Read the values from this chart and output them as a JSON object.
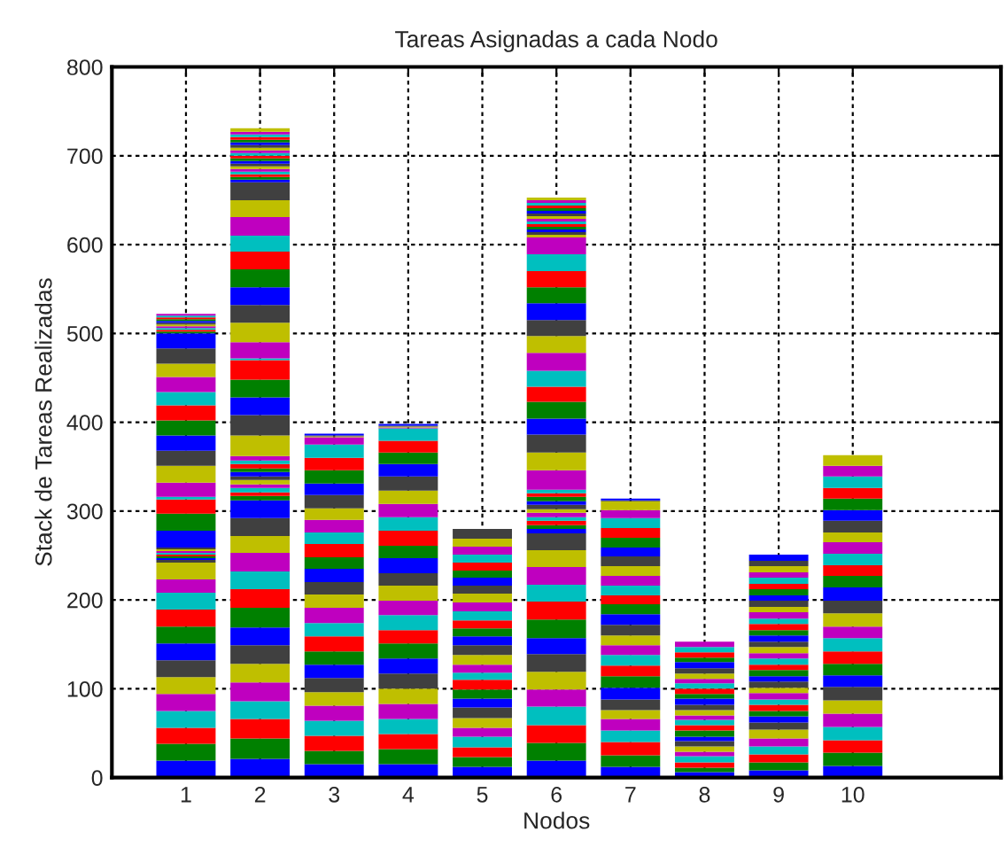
{
  "chart_data": {
    "type": "bar",
    "title": "Tareas Asignadas a cada Nodo",
    "xlabel": "Nodos",
    "ylabel": "Stack de Tareas Realizadas",
    "x": [
      1,
      2,
      3,
      4,
      5,
      6,
      7,
      8,
      9,
      10
    ],
    "xlim": [
      0,
      12
    ],
    "xticks": [
      1,
      2,
      3,
      4,
      5,
      6,
      7,
      8,
      9,
      10
    ],
    "ylim": [
      0,
      800
    ],
    "yticks": [
      0,
      100,
      200,
      300,
      400,
      500,
      600,
      700,
      800
    ],
    "grid": true,
    "stacked": true,
    "series": [
      {
        "color": "#0000ff",
        "values": [
          19,
          21,
          15,
          15,
          12,
          19,
          12,
          6,
          8,
          13
        ]
      },
      {
        "color": "#008000",
        "values": [
          19,
          23,
          15,
          17,
          11,
          20,
          13,
          5,
          9,
          15
        ]
      },
      {
        "color": "#ff0000",
        "values": [
          18,
          22,
          17,
          17,
          11,
          20,
          15,
          6,
          9,
          14
        ]
      },
      {
        "color": "#00bfbf",
        "values": [
          19,
          20,
          17,
          17,
          12,
          21,
          13,
          7,
          9,
          15
        ]
      },
      {
        "color": "#bf00bf",
        "values": [
          19,
          21,
          17,
          17,
          10,
          19,
          13,
          5,
          9,
          15
        ]
      },
      {
        "color": "#bfbf00",
        "values": [
          19,
          21,
          15,
          17,
          11,
          20,
          10,
          6,
          10,
          15
        ]
      },
      {
        "color": "#404040",
        "values": [
          19,
          21,
          16,
          17,
          12,
          20,
          12,
          6,
          8,
          15
        ]
      },
      {
        "color": "#0000ff",
        "values": [
          19,
          20,
          15,
          17,
          10,
          18,
          13,
          5,
          7,
          13
        ]
      },
      {
        "color": "#008000",
        "values": [
          19,
          22,
          15,
          17,
          10,
          21,
          13,
          7,
          6,
          13
        ]
      },
      {
        "color": "#ff0000",
        "values": [
          19,
          21,
          17,
          15,
          11,
          20,
          12,
          6,
          7,
          14
        ]
      },
      {
        "color": "#00bfbf",
        "values": [
          19,
          20,
          15,
          17,
          8,
          19,
          12,
          6,
          6,
          15
        ]
      },
      {
        "color": "#bf00bf",
        "values": [
          15,
          21,
          17,
          16,
          9,
          20,
          11,
          5,
          7,
          13
        ]
      },
      {
        "color": "#bfbf00",
        "values": [
          19,
          19,
          15,
          17,
          11,
          19,
          11,
          6,
          6,
          15
        ]
      },
      {
        "color": "#404040",
        "values": [
          3,
          20,
          14,
          14,
          11,
          19,
          12,
          6,
          7,
          14
        ]
      },
      {
        "color": "#0000ff",
        "values": [
          2,
          20,
          15,
          17,
          10,
          5,
          12,
          7,
          6,
          15
        ]
      },
      {
        "color": "#008000",
        "values": [
          2,
          5,
          13,
          14,
          9,
          4,
          11,
          5,
          7,
          13
        ]
      },
      {
        "color": "#ff0000",
        "values": [
          2,
          4,
          15,
          17,
          9,
          5,
          10,
          6,
          6,
          12
        ]
      },
      {
        "color": "#00bfbf",
        "values": [
          2,
          5,
          13,
          15,
          10,
          4,
          11,
          6,
          7,
          13
        ]
      },
      {
        "color": "#bf00bf",
        "values": [
          2,
          4,
          14,
          15,
          10,
          5,
          11,
          5,
          6,
          13
        ]
      },
      {
        "color": "#bfbf00",
        "values": [
          2,
          5,
          13,
          15,
          10,
          4,
          11,
          6,
          7,
          11
        ]
      },
      {
        "color": "#404040",
        "values": [
          2,
          4,
          15,
          16,
          9,
          5,
          11,
          6,
          6,
          13
        ]
      },
      {
        "color": "#0000ff",
        "values": [
          19,
          5,
          13,
          14,
          9,
          4,
          10,
          7,
          7,
          12
        ]
      },
      {
        "color": "#008000",
        "values": [
          19,
          4,
          15,
          13,
          8,
          5,
          11,
          5,
          6,
          13
        ]
      },
      {
        "color": "#ff0000",
        "values": [
          16,
          5,
          14,
          13,
          9,
          4,
          11,
          6,
          7,
          12
        ]
      },
      {
        "color": "#00bfbf",
        "values": [
          3,
          4,
          15,
          14,
          9,
          4,
          11,
          6,
          6,
          13
        ]
      },
      {
        "color": "#bf00bf",
        "values": [
          16,
          5,
          8,
          1,
          9,
          22,
          9,
          6,
          7,
          12
        ]
      },
      {
        "color": "#bfbf00",
        "values": [
          19,
          23,
          1,
          1,
          9,
          20,
          10,
          null,
          6,
          12
        ]
      },
      {
        "color": "#404040",
        "values": [
          17,
          23,
          1,
          1,
          11,
          20,
          1,
          null,
          7,
          null
        ]
      },
      {
        "color": "#0000ff",
        "values": [
          17,
          20,
          2,
          2,
          null,
          18,
          2,
          null,
          6,
          null
        ]
      },
      {
        "color": "#008000",
        "values": [
          17,
          20,
          null,
          null,
          null,
          19,
          null,
          null,
          7,
          null
        ]
      },
      {
        "color": "#ff0000",
        "values": [
          17,
          22,
          null,
          null,
          null,
          17,
          null,
          null,
          6,
          null
        ]
      },
      {
        "color": "#00bfbf",
        "values": [
          15,
          2,
          null,
          null,
          null,
          18,
          null,
          null,
          7,
          null
        ]
      },
      {
        "color": "#bf00bf",
        "values": [
          17,
          18,
          null,
          null,
          null,
          20,
          null,
          null,
          6,
          null
        ]
      },
      {
        "color": "#bfbf00",
        "values": [
          15,
          22,
          null,
          null,
          null,
          19,
          null,
          null,
          7,
          null
        ]
      },
      {
        "color": "#404040",
        "values": [
          17,
          20,
          null,
          null,
          null,
          18,
          null,
          null,
          6,
          null
        ]
      },
      {
        "color": "#0000ff",
        "values": [
          17,
          20,
          null,
          null,
          null,
          19,
          null,
          null,
          7,
          null
        ]
      },
      {
        "color": "#008000",
        "values": [
          2,
          20,
          null,
          null,
          null,
          18,
          null,
          null,
          null,
          null
        ]
      },
      {
        "color": "#ff0000",
        "values": [
          2,
          20,
          null,
          null,
          null,
          18,
          null,
          null,
          null,
          null
        ]
      },
      {
        "color": "#00bfbf",
        "values": [
          2,
          18,
          null,
          null,
          null,
          19,
          null,
          null,
          null,
          null
        ]
      },
      {
        "color": "#bf00bf",
        "values": [
          2,
          21,
          null,
          null,
          null,
          19,
          null,
          null,
          null,
          null
        ]
      },
      {
        "color": "#bfbf00",
        "values": [
          2,
          19,
          null,
          null,
          null,
          3,
          null,
          null,
          null,
          null
        ]
      },
      {
        "color": "#404040",
        "values": [
          2,
          20,
          null,
          null,
          null,
          3,
          null,
          null,
          null,
          null
        ]
      },
      {
        "color": "#0000ff",
        "values": [
          2,
          3,
          null,
          null,
          null,
          3,
          null,
          null,
          null,
          null
        ]
      },
      {
        "color": "#008000",
        "values": [
          2,
          3,
          null,
          null,
          null,
          3,
          null,
          null,
          null,
          null
        ]
      },
      {
        "color": "#ff0000",
        "values": [
          2,
          3,
          null,
          null,
          null,
          3,
          null,
          null,
          null,
          null
        ]
      },
      {
        "color": "#00bfbf",
        "values": [
          2,
          3,
          null,
          null,
          null,
          3,
          null,
          null,
          null,
          null
        ]
      },
      {
        "color": "#bf00bf",
        "values": [
          2,
          3,
          null,
          null,
          null,
          3,
          null,
          null,
          null,
          null
        ]
      },
      {
        "color": "#bfbf00",
        "values": [
          null,
          3,
          null,
          null,
          null,
          3,
          null,
          null,
          null,
          null
        ]
      },
      {
        "color": "#404040",
        "values": [
          null,
          3,
          null,
          null,
          null,
          3,
          null,
          null,
          null,
          null
        ]
      },
      {
        "color": "#0000ff",
        "values": [
          null,
          3,
          null,
          null,
          null,
          3,
          null,
          null,
          null,
          null
        ]
      },
      {
        "color": "#008000",
        "values": [
          null,
          3,
          null,
          null,
          null,
          3,
          null,
          null,
          null,
          null
        ]
      },
      {
        "color": "#ff0000",
        "values": [
          null,
          3,
          null,
          null,
          null,
          3,
          null,
          null,
          null,
          null
        ]
      },
      {
        "color": "#00bfbf",
        "values": [
          null,
          3,
          null,
          null,
          null,
          3,
          null,
          null,
          null,
          null
        ]
      },
      {
        "color": "#bf00bf",
        "values": [
          null,
          3,
          null,
          null,
          null,
          3,
          null,
          null,
          null,
          null
        ]
      },
      {
        "color": "#bfbf00",
        "values": [
          null,
          3,
          null,
          null,
          null,
          3,
          null,
          null,
          null,
          null
        ]
      },
      {
        "color": "#404040",
        "values": [
          null,
          3,
          null,
          null,
          null,
          null,
          null,
          null,
          null,
          null
        ]
      },
      {
        "color": "#0000ff",
        "values": [
          null,
          3,
          null,
          null,
          null,
          null,
          null,
          null,
          null,
          null
        ]
      },
      {
        "color": "#008000",
        "values": [
          null,
          3,
          null,
          null,
          null,
          null,
          null,
          null,
          null,
          null
        ]
      },
      {
        "color": "#ff0000",
        "values": [
          null,
          3,
          null,
          null,
          null,
          null,
          null,
          null,
          null,
          null
        ]
      },
      {
        "color": "#00bfbf",
        "values": [
          null,
          3,
          null,
          null,
          null,
          null,
          null,
          null,
          null,
          null
        ]
      },
      {
        "color": "#bf00bf",
        "values": [
          null,
          3,
          null,
          null,
          null,
          null,
          null,
          null,
          null,
          null
        ]
      },
      {
        "color": "#bfbf00",
        "values": [
          null,
          4,
          null,
          null,
          null,
          null,
          null,
          null,
          null,
          null
        ]
      }
    ]
  }
}
